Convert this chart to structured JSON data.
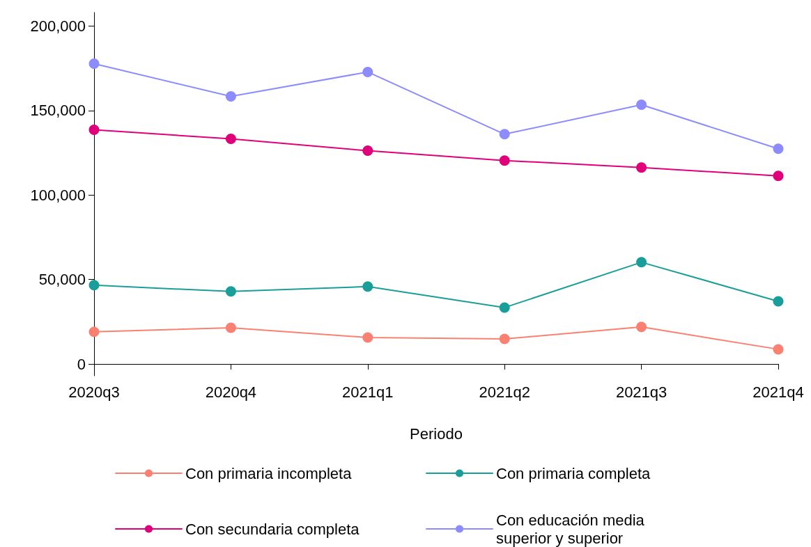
{
  "chart_data": {
    "type": "line",
    "xlabel": "Periodo",
    "categories": [
      "2020q3",
      "2020q4",
      "2021q1",
      "2021q2",
      "2021q3",
      "2021q4"
    ],
    "ylim": [
      -7000,
      208000
    ],
    "yticks": [
      {
        "value": 0,
        "label": "0"
      },
      {
        "value": 50000,
        "label": "50,000"
      },
      {
        "value": 100000,
        "label": "100,000"
      },
      {
        "value": 150000,
        "label": "150,000"
      },
      {
        "value": 200000,
        "label": "200,000"
      }
    ],
    "grid": false,
    "legend": "bottom",
    "marker": "circle",
    "line_style": "solid",
    "series": [
      {
        "name": "Con primaria incompleta",
        "color": "#fa8072",
        "values": [
          19000,
          21400,
          15700,
          14800,
          21900,
          8700
        ]
      },
      {
        "name": "Con primaria completa",
        "color": "#1a9e9a",
        "values": [
          46600,
          42900,
          45800,
          33400,
          60200,
          37100
        ]
      },
      {
        "name": "Con secundaria completa",
        "color": "#e0007a",
        "values": [
          138600,
          133200,
          126200,
          120400,
          116300,
          111300
        ]
      },
      {
        "name": "Con educación media superior y superior",
        "color": "#8c8cff",
        "values": [
          177700,
          158400,
          172800,
          136000,
          153400,
          127400
        ]
      }
    ]
  }
}
